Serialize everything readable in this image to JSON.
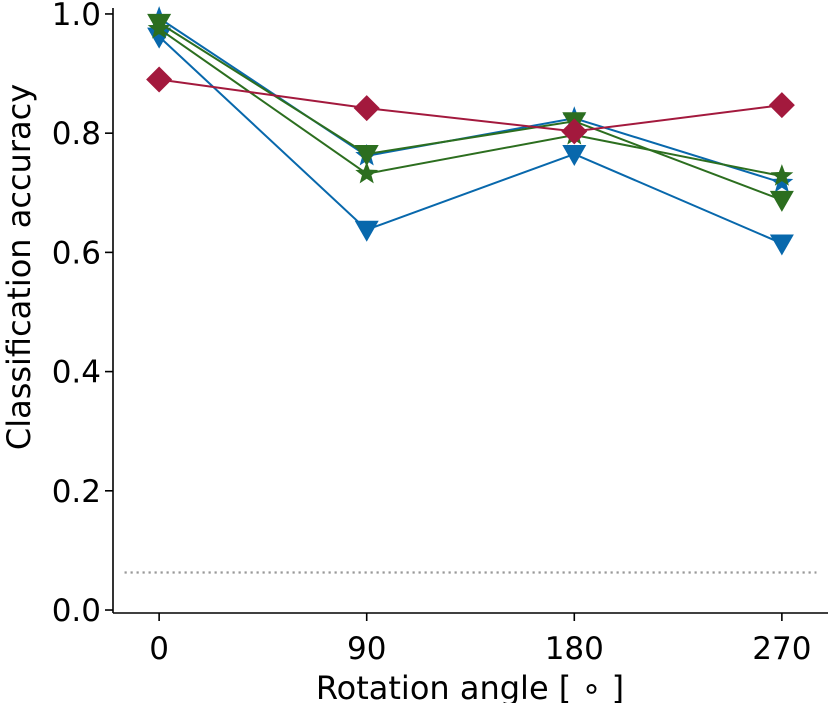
{
  "chart_data": {
    "type": "line",
    "title": "",
    "xlabel": "Rotation angle [ ∘ ]",
    "ylabel": "Classification accuracy",
    "x": [
      0,
      90,
      180,
      270
    ],
    "x_tick_labels": [
      "0",
      "90",
      "180",
      "270"
    ],
    "y_ticks": [
      0.0,
      0.2,
      0.4,
      0.6,
      0.8,
      1.0
    ],
    "y_tick_labels": [
      "0.0",
      "0.2",
      "0.4",
      "0.6",
      "0.8",
      "1.0"
    ],
    "xlim": [
      -20,
      290
    ],
    "ylim": [
      -0.005,
      1.01
    ],
    "grid": false,
    "legend": "none",
    "chance_level": {
      "value": 0.063,
      "color": "#999999",
      "style": "dotted"
    },
    "series": [
      {
        "name": "blue-triangle",
        "color": "#0868ac",
        "marker": "triangle-down",
        "values": [
          0.962,
          0.638,
          0.765,
          0.615
        ]
      },
      {
        "name": "blue-star",
        "color": "#0868ac",
        "marker": "star",
        "values": [
          0.993,
          0.762,
          0.825,
          0.717
        ]
      },
      {
        "name": "green-triangle",
        "color": "#2c6e1f",
        "marker": "triangle-down",
        "values": [
          0.985,
          0.765,
          0.82,
          0.688
        ]
      },
      {
        "name": "green-star",
        "color": "#2c6e1f",
        "marker": "star",
        "values": [
          0.975,
          0.732,
          0.797,
          0.728
        ]
      },
      {
        "name": "red-diamond",
        "color": "#a3193d",
        "marker": "diamond",
        "values": [
          0.89,
          0.842,
          0.803,
          0.847
        ]
      }
    ]
  }
}
